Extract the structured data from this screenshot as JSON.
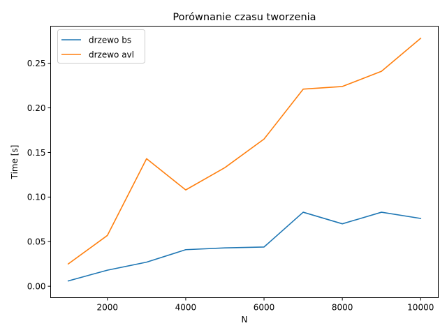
{
  "chart_data": {
    "type": "line",
    "title": "Porównanie czasu tworzenia",
    "xlabel": "N",
    "ylabel": "Time [s]",
    "xlim": [
      550,
      10450
    ],
    "ylim": [
      -0.0128,
      0.2916
    ],
    "x_ticks": [
      2000,
      4000,
      6000,
      8000,
      10000
    ],
    "x_tick_labels": [
      "2000",
      "4000",
      "6000",
      "8000",
      "10000"
    ],
    "y_ticks": [
      0.0,
      0.05,
      0.1,
      0.15,
      0.2,
      0.25
    ],
    "y_tick_labels": [
      "0.00",
      "0.05",
      "0.10",
      "0.15",
      "0.20",
      "0.25"
    ],
    "grid": false,
    "legend_position": "upper-left",
    "x": [
      1000,
      2000,
      3000,
      4000,
      5000,
      6000,
      7000,
      8000,
      9000,
      10000
    ],
    "series": [
      {
        "name": "drzewo bs",
        "color": "#1f77b4",
        "values": [
          0.006,
          0.018,
          0.027,
          0.041,
          0.043,
          0.044,
          0.083,
          0.07,
          0.083,
          0.076
        ]
      },
      {
        "name": "drzewo avl",
        "color": "#ff7f0e",
        "values": [
          0.025,
          0.057,
          0.143,
          0.108,
          0.133,
          0.165,
          0.221,
          0.224,
          0.241,
          0.278
        ]
      }
    ]
  }
}
